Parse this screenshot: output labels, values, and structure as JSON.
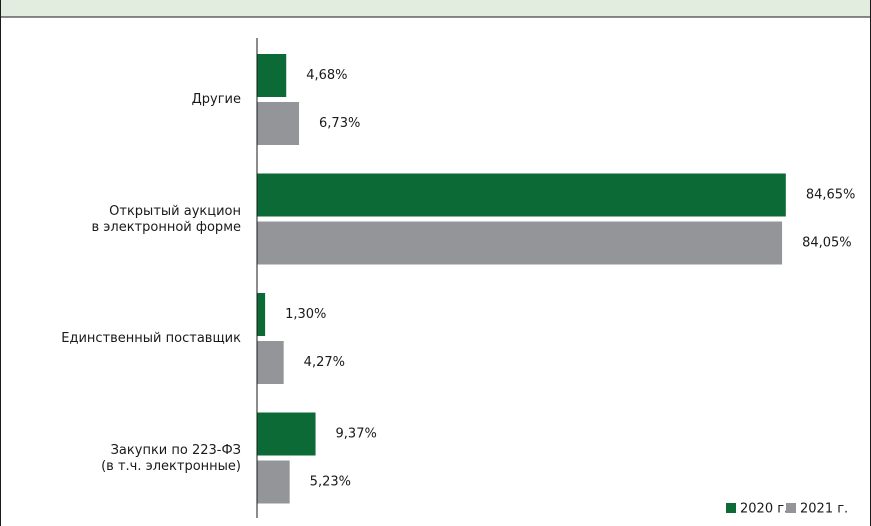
{
  "chart_data": {
    "type": "bar",
    "orientation": "horizontal",
    "categories": [
      "Другие",
      "Открытый аукцион\nв электронной форме",
      "Единственный поставщик",
      "Закупки по 223-ФЗ\n(в т.ч. электронные)"
    ],
    "series": [
      {
        "name": "2020 г.",
        "color": "#0b6a35",
        "values": [
          4.68,
          84.65,
          1.3,
          9.37
        ],
        "value_labels": [
          "4,68%",
          "84,65%",
          "1,30%",
          "9,37%"
        ]
      },
      {
        "name": "2021 г.",
        "color": "#939598",
        "values": [
          6.73,
          84.05,
          4.27,
          5.23
        ],
        "value_labels": [
          "6,73%",
          "84,05%",
          "4,27%",
          "5,23%"
        ]
      }
    ],
    "xlim": [
      0,
      85
    ],
    "legend": "bottom-right"
  }
}
